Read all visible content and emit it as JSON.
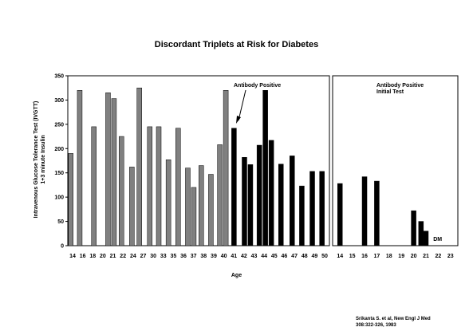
{
  "chart_data": {
    "type": "bar",
    "title": "Discordant Triplets at Risk for Diabetes",
    "xlabel": "Age",
    "ylabel_lines": [
      "Intravenous Glucose Tolerance Test (IVGTT)",
      "1+3 minute Insulin"
    ],
    "ylim": [
      0,
      350
    ],
    "yticks": [
      0,
      50,
      100,
      150,
      200,
      250,
      300,
      350
    ],
    "left_panel": {
      "ticks": [
        "14",
        "16",
        "18",
        "20",
        "21",
        "22",
        "24",
        "27",
        "30",
        "33",
        "35",
        "36",
        "37",
        "38",
        "39",
        "40",
        "41",
        "42",
        "43",
        "44",
        "45",
        "46",
        "47",
        "48",
        "49",
        "50"
      ],
      "annotation": "Antibody Positive",
      "series": [
        {
          "color": "#808080",
          "bars": [
            {
              "x": 13.8,
              "value": 190
            },
            {
              "x": 15.0,
              "value": 320
            },
            {
              "x": 16.9,
              "value": 245
            },
            {
              "x": 18.8,
              "value": 315
            },
            {
              "x": 19.6,
              "value": 303
            },
            {
              "x": 20.6,
              "value": 225
            },
            {
              "x": 22.0,
              "value": 162
            },
            {
              "x": 23.0,
              "value": 325
            },
            {
              "x": 24.4,
              "value": 245
            },
            {
              "x": 25.6,
              "value": 245
            },
            {
              "x": 26.9,
              "value": 177
            },
            {
              "x": 28.2,
              "value": 242
            },
            {
              "x": 29.5,
              "value": 160
            },
            {
              "x": 30.3,
              "value": 120
            },
            {
              "x": 31.3,
              "value": 165
            },
            {
              "x": 32.6,
              "value": 147
            },
            {
              "x": 33.8,
              "value": 208
            },
            {
              "x": 34.6,
              "value": 320
            }
          ]
        },
        {
          "color": "#000000",
          "bars": [
            {
              "x": 35.7,
              "value": 242
            },
            {
              "x": 37.1,
              "value": 182
            },
            {
              "x": 37.9,
              "value": 167
            },
            {
              "x": 39.1,
              "value": 207
            },
            {
              "x": 39.9,
              "value": 320
            },
            {
              "x": 40.7,
              "value": 217
            },
            {
              "x": 42.0,
              "value": 168
            },
            {
              "x": 43.5,
              "value": 185
            },
            {
              "x": 44.8,
              "value": 123
            },
            {
              "x": 46.2,
              "value": 153
            },
            {
              "x": 47.5,
              "value": 153
            }
          ]
        }
      ]
    },
    "right_panel": {
      "ticks": [
        "14",
        "15",
        "16",
        "17",
        "18",
        "19",
        "20",
        "21",
        "22",
        "23"
      ],
      "annotation_lines": [
        "Antibody Positive",
        "Initial Test"
      ],
      "end_label": "DM",
      "series": [
        {
          "color": "#000000",
          "bars": [
            {
              "x": 14,
              "value": 128
            },
            {
              "x": 16,
              "value": 142
            },
            {
              "x": 17,
              "value": 133
            },
            {
              "x": 20,
              "value": 72
            },
            {
              "x": 20.6,
              "value": 50
            },
            {
              "x": 21,
              "value": 30
            }
          ]
        }
      ]
    }
  },
  "citation_lines": [
    "Srikanta S. et al, New Engl J Med",
    "308:322-326, 1983"
  ]
}
